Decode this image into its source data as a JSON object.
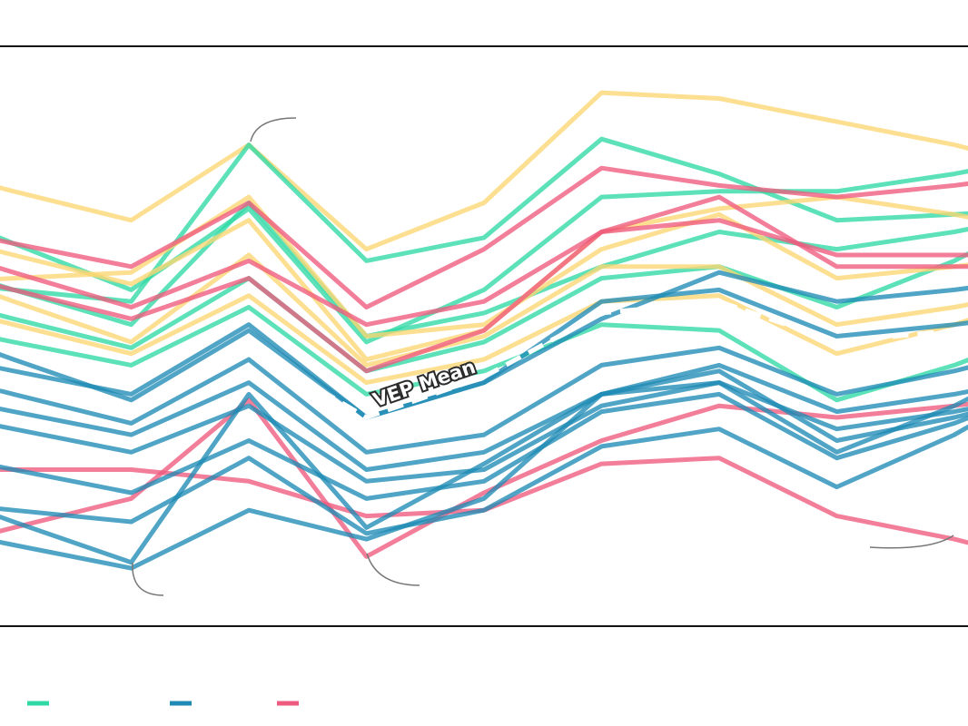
{
  "chart_data": {
    "type": "line",
    "x": [
      0,
      1,
      2,
      3,
      4,
      5,
      6,
      7,
      8
    ],
    "ylim": [
      0,
      100
    ],
    "grid": false,
    "legend": "bottom-left",
    "series_colors": [
      "#2fd8a4",
      "#1f8ab5",
      "#ee5a7e",
      "#fdd672"
    ],
    "mean_line": {
      "label": "VEP Mean",
      "color": "#ffffff",
      "values": [
        41,
        38,
        48,
        36,
        43,
        54,
        56,
        49,
        51
      ]
    },
    "legend_entries": [
      {
        "color": "#2fd8a4",
        "label": ""
      },
      {
        "color": "#1f8ab5",
        "label": ""
      },
      {
        "color": "#ee5a7e",
        "label": ""
      }
    ],
    "series": [
      {
        "group": 3,
        "values": [
          75,
          70,
          83,
          65,
          73,
          92,
          91,
          87,
          83
        ]
      },
      {
        "group": 0,
        "values": [
          58,
          56,
          83,
          63,
          67,
          84,
          78,
          70,
          71
        ]
      },
      {
        "group": 0,
        "values": [
          66,
          58,
          72,
          49,
          58,
          74,
          75,
          75,
          78
        ]
      },
      {
        "group": 0,
        "values": [
          58,
          52,
          73,
          50,
          54,
          62,
          68,
          65,
          68
        ]
      },
      {
        "group": 0,
        "values": [
          49,
          45,
          55,
          40,
          44,
          52,
          51,
          39,
          45
        ]
      },
      {
        "group": 0,
        "values": [
          53,
          48,
          60,
          44,
          49,
          60,
          62,
          55,
          63
        ]
      },
      {
        "group": 3,
        "values": [
          60,
          61,
          74,
          50,
          52,
          65,
          71,
          60,
          62
        ]
      },
      {
        "group": 3,
        "values": [
          56,
          49,
          64,
          45,
          50,
          62,
          62,
          52,
          55
        ]
      },
      {
        "group": 3,
        "values": [
          52,
          47,
          57,
          42,
          46,
          56,
          57,
          47,
          52
        ]
      },
      {
        "group": 3,
        "values": [
          64,
          59,
          70,
          46,
          51,
          68,
          72,
          74,
          71
        ]
      },
      {
        "group": 2,
        "values": [
          66,
          62,
          73,
          55,
          65,
          79,
          76,
          74,
          76
        ]
      },
      {
        "group": 2,
        "values": [
          61,
          55,
          63,
          52,
          56,
          68,
          70,
          64,
          64
        ]
      },
      {
        "group": 2,
        "values": [
          58,
          53,
          60,
          44,
          51,
          68,
          74,
          62,
          62
        ]
      },
      {
        "group": 2,
        "values": [
          27,
          27,
          25,
          19,
          20,
          28,
          29,
          19,
          15
        ]
      },
      {
        "group": 2,
        "values": [
          17,
          22,
          39,
          12,
          23,
          32,
          38,
          36,
          38
        ]
      },
      {
        "group": 1,
        "values": [
          40,
          35,
          46,
          30,
          33,
          45,
          48,
          40,
          44
        ]
      },
      {
        "group": 1,
        "values": [
          37,
          33,
          42,
          27,
          30,
          40,
          45,
          37,
          40
        ]
      },
      {
        "group": 1,
        "values": [
          34,
          30,
          38,
          25,
          27,
          38,
          42,
          34,
          37
        ]
      },
      {
        "group": 1,
        "values": [
          27,
          23,
          32,
          22,
          25,
          37,
          40,
          29,
          35
        ]
      },
      {
        "group": 1,
        "values": [
          20,
          18,
          29,
          16,
          20,
          31,
          34,
          24,
          33
        ]
      },
      {
        "group": 1,
        "values": [
          14,
          10,
          20,
          15,
          22,
          40,
          42,
          30,
          38
        ]
      },
      {
        "group": 1,
        "values": [
          18,
          11,
          40,
          17,
          28,
          40,
          44,
          32,
          36
        ]
      },
      {
        "group": 1,
        "values": [
          44,
          40,
          52,
          36,
          42,
          56,
          58,
          50,
          52
        ]
      },
      {
        "group": 1,
        "values": [
          46,
          39,
          51,
          36,
          42,
          53,
          61,
          56,
          58
        ]
      }
    ]
  }
}
